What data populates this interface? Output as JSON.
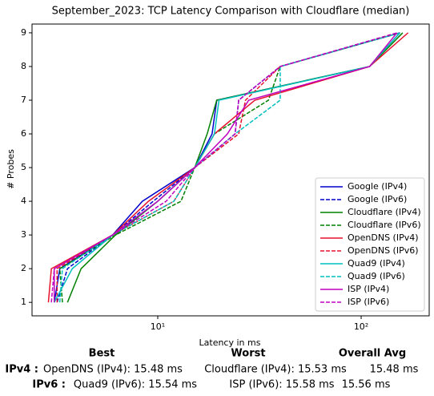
{
  "chart_data": {
    "type": "line",
    "title": "September_2023: TCP Latency Comparison with Cloudflare (median)",
    "xlabel": "Latency in ms",
    "ylabel": "# Probes",
    "xscale": "log",
    "y": [
      1,
      2,
      3,
      4,
      5,
      6,
      7,
      8,
      9
    ],
    "xlim": [
      2.41,
      216
    ],
    "ylim": [
      0.6,
      9.26
    ],
    "xticks": [
      {
        "value": 10,
        "label": "10¹"
      },
      {
        "value": 100,
        "label": "10²"
      }
    ],
    "yticks": [
      1,
      2,
      3,
      4,
      5,
      6,
      7,
      8,
      9
    ],
    "legend": "lower right",
    "series": [
      {
        "name": "Google (IPv4)",
        "color": "#0000cc",
        "dashed": false,
        "x": [
          3.1,
          3.3,
          6.0,
          8.4,
          15.2,
          18.5,
          19.5,
          110,
          155
        ]
      },
      {
        "name": "Google (IPv6)",
        "color": "#0000cc",
        "dashed": true,
        "x": [
          3.2,
          3.6,
          6.0,
          9.5,
          15.2,
          24,
          25,
          40,
          155
        ]
      },
      {
        "name": "Cloudflare (IPv4)",
        "color": "#008000",
        "dashed": false,
        "x": [
          3.6,
          4.2,
          6.2,
          10,
          15.2,
          17.5,
          19.5,
          110,
          160
        ]
      },
      {
        "name": "Cloudflare (IPv6)",
        "color": "#008000",
        "dashed": true,
        "x": [
          3.4,
          3.3,
          6.2,
          13,
          15.2,
          19,
          35,
          40,
          155
        ]
      },
      {
        "name": "OpenDNS (IPv4)",
        "color": "#e8112d",
        "dashed": false,
        "x": [
          2.9,
          3.0,
          6.0,
          9,
          15.2,
          19,
          30,
          110,
          170
        ]
      },
      {
        "name": "OpenDNS (IPv6)",
        "color": "#e8112d",
        "dashed": true,
        "x": [
          3.2,
          3.2,
          6.0,
          12,
          15.2,
          25,
          27,
          40,
          155
        ]
      },
      {
        "name": "Quad9 (IPv4)",
        "color": "#00bfbf",
        "dashed": false,
        "x": [
          3.1,
          3.8,
          6.0,
          10,
          15.2,
          19,
          20,
          110,
          155
        ]
      },
      {
        "name": "Quad9 (IPv6)",
        "color": "#00bfbf",
        "dashed": true,
        "x": [
          3.3,
          3.4,
          6.0,
          12,
          15.2,
          24,
          40,
          40,
          155
        ]
      },
      {
        "name": "ISP (IPv4)",
        "color": "#bf00bf",
        "dashed": false,
        "x": [
          3.1,
          3.1,
          6.0,
          10,
          15.2,
          22,
          28,
          110,
          150
        ]
      },
      {
        "name": "ISP (IPv6)",
        "color": "#bf00bf",
        "dashed": true,
        "x": [
          3.0,
          3.1,
          6.0,
          11,
          15.2,
          24,
          25,
          40,
          150
        ]
      }
    ]
  },
  "table": {
    "header": [
      "Best",
      "Worst",
      "Overall Avg"
    ],
    "rows": [
      [
        "IPv4 :",
        "OpenDNS (IPv4): 15.48 ms",
        "Cloudflare (IPv4): 15.53 ms",
        "15.48 ms"
      ],
      [
        "IPv6 :",
        "Quad9 (IPv6): 15.54 ms",
        "ISP (IPv6): 15.58 ms",
        "15.56 ms"
      ]
    ]
  }
}
